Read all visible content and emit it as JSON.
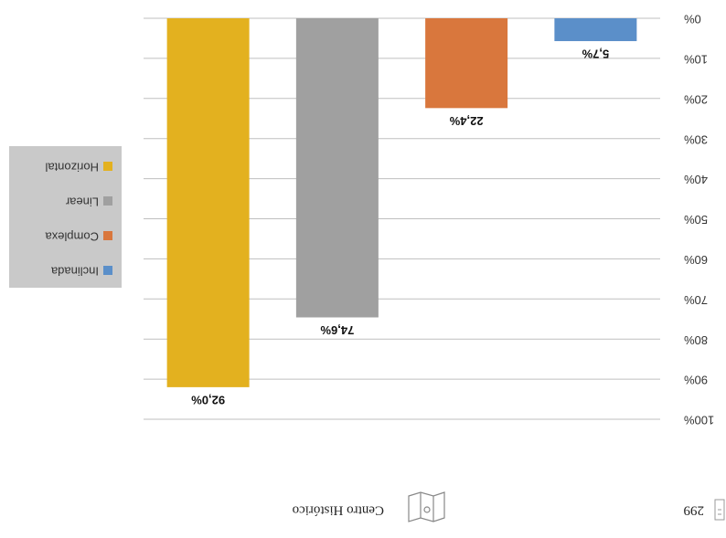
{
  "header": {
    "page_number": "299",
    "section": "Centro Histórico"
  },
  "chart_data": {
    "type": "bar",
    "categories": [
      "Inclinada",
      "Complexa",
      "Linear",
      "Horizontal"
    ],
    "values": [
      5.7,
      22.4,
      74.6,
      92.0
    ],
    "value_labels": [
      "5,7%",
      "22,4%",
      "74,6%",
      "92,0%"
    ],
    "colors": [
      "#5b8fc9",
      "#d9773d",
      "#a0a0a0",
      "#e3b11f"
    ],
    "ylim": [
      0,
      100
    ],
    "yticks": [
      {
        "value": 0,
        "label": "0%"
      },
      {
        "value": 10,
        "label": "10%"
      },
      {
        "value": 20,
        "label": "20%"
      },
      {
        "value": 30,
        "label": "30%"
      },
      {
        "value": 40,
        "label": "40%"
      },
      {
        "value": 50,
        "label": "50%"
      },
      {
        "value": 60,
        "label": "60%"
      },
      {
        "value": 70,
        "label": "70%"
      },
      {
        "value": 80,
        "label": "80%"
      },
      {
        "value": 90,
        "label": "90%"
      },
      {
        "value": 100,
        "label": "100%"
      }
    ],
    "grid": true,
    "legend": "right"
  }
}
